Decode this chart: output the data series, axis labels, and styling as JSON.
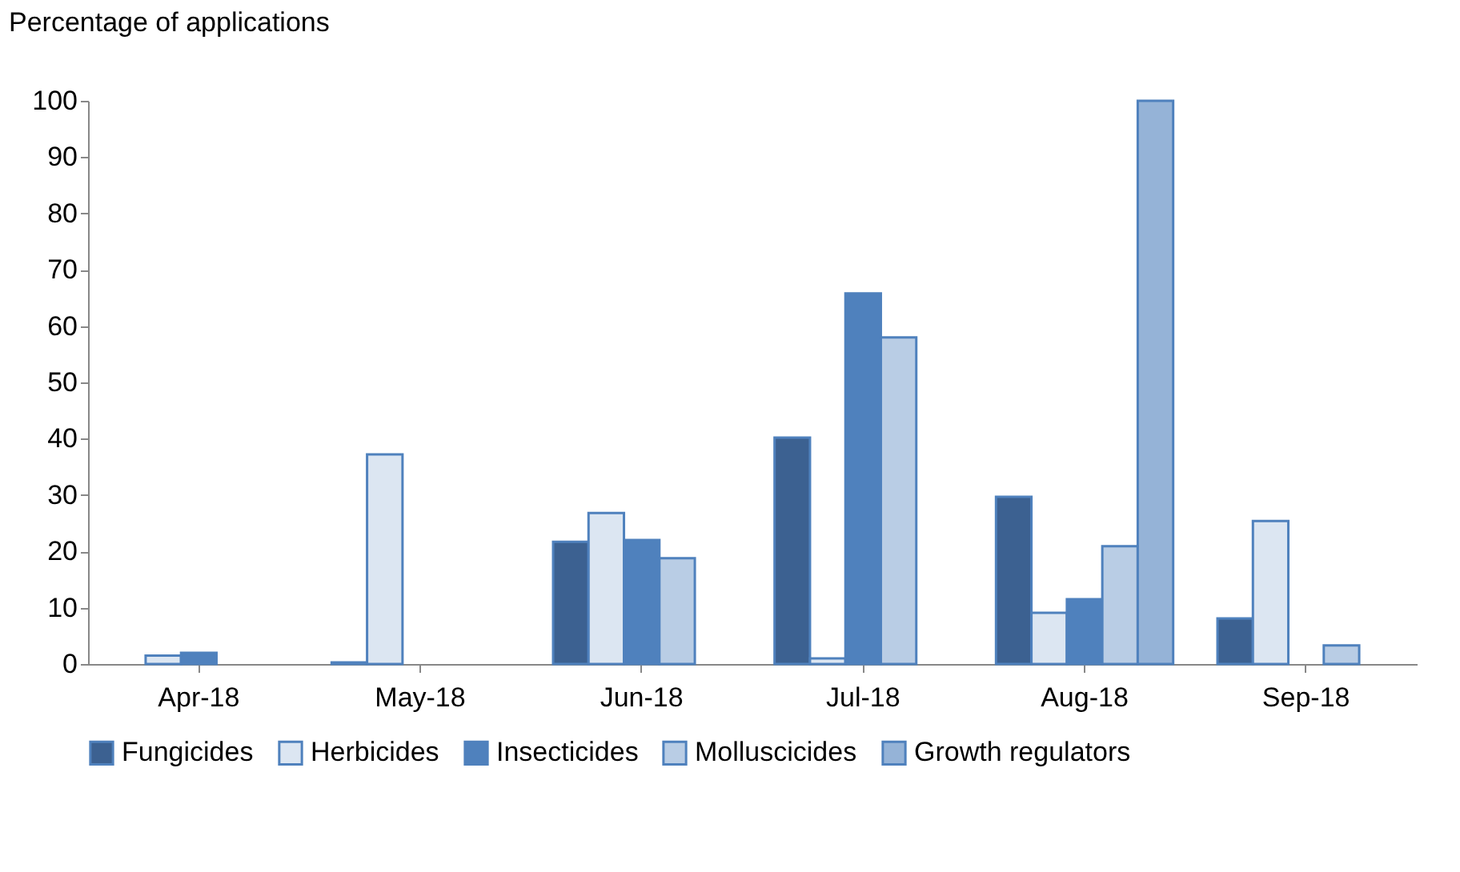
{
  "chart_data": {
    "type": "bar",
    "ylabel": "Percentage of applications",
    "categories": [
      "Apr-18",
      "May-18",
      "Jun-18",
      "Jul-18",
      "Aug-18",
      "Sep-18"
    ],
    "series": [
      {
        "name": "Fungicides",
        "color": "#3c6191",
        "values": [
          null,
          0.3,
          21.7,
          40.2,
          29.7,
          8.1
        ]
      },
      {
        "name": "Herbicides",
        "color": "#dce6f2",
        "values": [
          1.5,
          37.2,
          26.8,
          1,
          9.1,
          25.4
        ]
      },
      {
        "name": "Insecticides",
        "color": "#4f81bd",
        "values": [
          2,
          null,
          22,
          65.8,
          11.5,
          null
        ]
      },
      {
        "name": "Molluscicides",
        "color": "#b9cde5",
        "values": [
          null,
          null,
          18.8,
          58,
          20.9,
          3.3
        ]
      },
      {
        "name": "Growth regulators",
        "color": "#95b3d7",
        "values": [
          null,
          null,
          null,
          null,
          100,
          null
        ]
      }
    ],
    "ylim": [
      0,
      100
    ],
    "yticks": [
      0,
      10,
      20,
      30,
      40,
      50,
      60,
      70,
      80,
      90,
      100
    ],
    "grid": false,
    "legend": "bottom"
  }
}
